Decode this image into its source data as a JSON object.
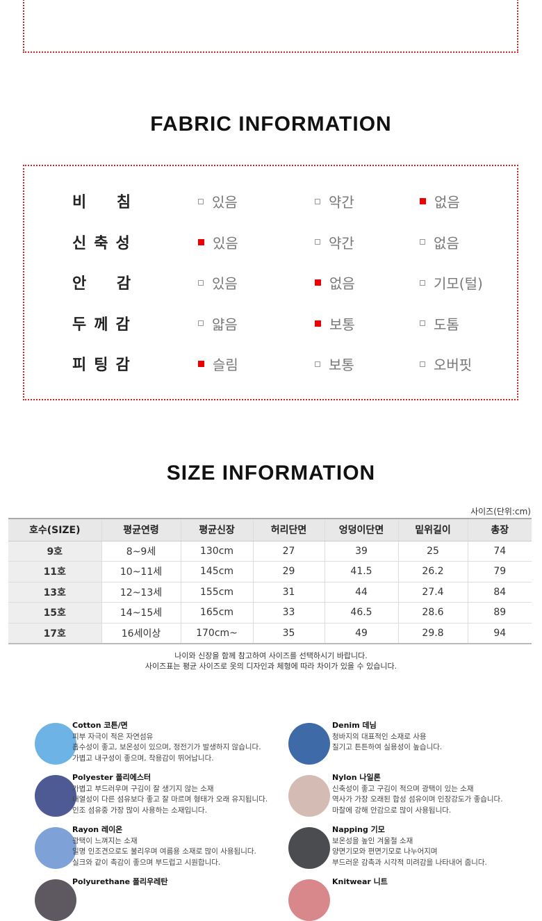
{
  "fabric": {
    "title": "FABRIC INFORMATION",
    "rows": [
      {
        "label": "비 침",
        "options": [
          {
            "text": "있음",
            "checked": false
          },
          {
            "text": "약간",
            "checked": false
          },
          {
            "text": "없음",
            "checked": true
          }
        ]
      },
      {
        "label": "신축성",
        "options": [
          {
            "text": "있음",
            "checked": true
          },
          {
            "text": "약간",
            "checked": false
          },
          {
            "text": "없음",
            "checked": false
          }
        ]
      },
      {
        "label": "안 감",
        "options": [
          {
            "text": "있음",
            "checked": false
          },
          {
            "text": "없음",
            "checked": true
          },
          {
            "text": "기모(털)",
            "checked": false
          }
        ]
      },
      {
        "label": "두께감",
        "options": [
          {
            "text": "얇음",
            "checked": false
          },
          {
            "text": "보통",
            "checked": true
          },
          {
            "text": "도톰",
            "checked": false
          }
        ]
      },
      {
        "label": "피팅감",
        "options": [
          {
            "text": "슬림",
            "checked": true
          },
          {
            "text": "보통",
            "checked": false
          },
          {
            "text": "오버핏",
            "checked": false
          }
        ]
      }
    ]
  },
  "size": {
    "title": "SIZE INFORMATION",
    "unit": "사이즈(단위:cm)",
    "headers": [
      "호수(SIZE)",
      "평균연령",
      "평균신장",
      "허리단면",
      "엉덩이단면",
      "밑위길이",
      "총장"
    ],
    "rows": [
      [
        "9호",
        "8~9세",
        "130cm",
        "27",
        "39",
        "25",
        "74"
      ],
      [
        "11호",
        "10~11세",
        "145cm",
        "29",
        "41.5",
        "26.2",
        "79"
      ],
      [
        "13호",
        "12~13세",
        "155cm",
        "31",
        "44",
        "27.4",
        "84"
      ],
      [
        "15호",
        "14~15세",
        "165cm",
        "33",
        "46.5",
        "28.6",
        "89"
      ],
      [
        "17호",
        "16세이상",
        "170cm~",
        "35",
        "49",
        "29.8",
        "94"
      ]
    ],
    "notes": [
      "나이와 신장을 함께 참고하여 사이즈를 선택하시기 바랍니다.",
      "사이즈표는 평균 사이즈로 옷의 디자인과 체형에 따라 차이가 있을 수 있습니다."
    ]
  },
  "materials": [
    {
      "name": "Cotton 코튼/면",
      "color": "#6db3e6",
      "lines": [
        "피부 자극이 적은 자연섬유",
        "흡수성이 좋고, 보온성이 있으며, 정전기가 발생하지 않습니다.",
        "가볍고 내구성이 좋으며, 착용감이 뛰어납니다."
      ]
    },
    {
      "name": "Denim 데님",
      "color": "#3f6aa8",
      "lines": [
        "청바지의 대표적인 소재로 사용",
        "질기고 튼튼하여 실용성이 높습니다."
      ]
    },
    {
      "name": "Polyester 폴리에스터",
      "color": "#4d5a94",
      "lines": [
        "가볍고 부드러우며 구김이 잘 생기지 않는 소재",
        "내열성이 다른 섬유보다 좋고 잘 마르며 형태가 오래 유지됩니다.",
        "인조 섬유중 가장 많이 사용하는 소재입니다."
      ]
    },
    {
      "name": "Nylon 나일론",
      "color": "#d4bcb4",
      "lines": [
        "신축성이 좋고 구김이 적으며 광택이 있는 소재",
        "역사가 가장 오래된 합성 섬유이며 인장강도가 좋습니다.",
        "마찰에 강해 안감으로 많이 사용됩니다."
      ]
    },
    {
      "name": "Rayon 레이온",
      "color": "#7ea2d8",
      "lines": [
        "광택이 느껴지는 소재",
        "일명 인조견으로도 불리우며 여름용 소재로 많이 사용됩니다.",
        "실크와 같이 촉감이 좋으며 부드럽고 시원합니다."
      ]
    },
    {
      "name": "Napping 기모",
      "color": "#4a4c50",
      "lines": [
        "보온성을 높인 겨울철 소재",
        "양면기모와 편면기모로 나누어지며",
        "부드러운 감촉과 시각적 미려감을 나타내어 줍니다."
      ]
    },
    {
      "name": "Polyurethane 폴리우레탄",
      "color": "#5e5860",
      "lines": []
    },
    {
      "name": "Knitwear 니트",
      "color": "#d8888a",
      "lines": []
    }
  ]
}
